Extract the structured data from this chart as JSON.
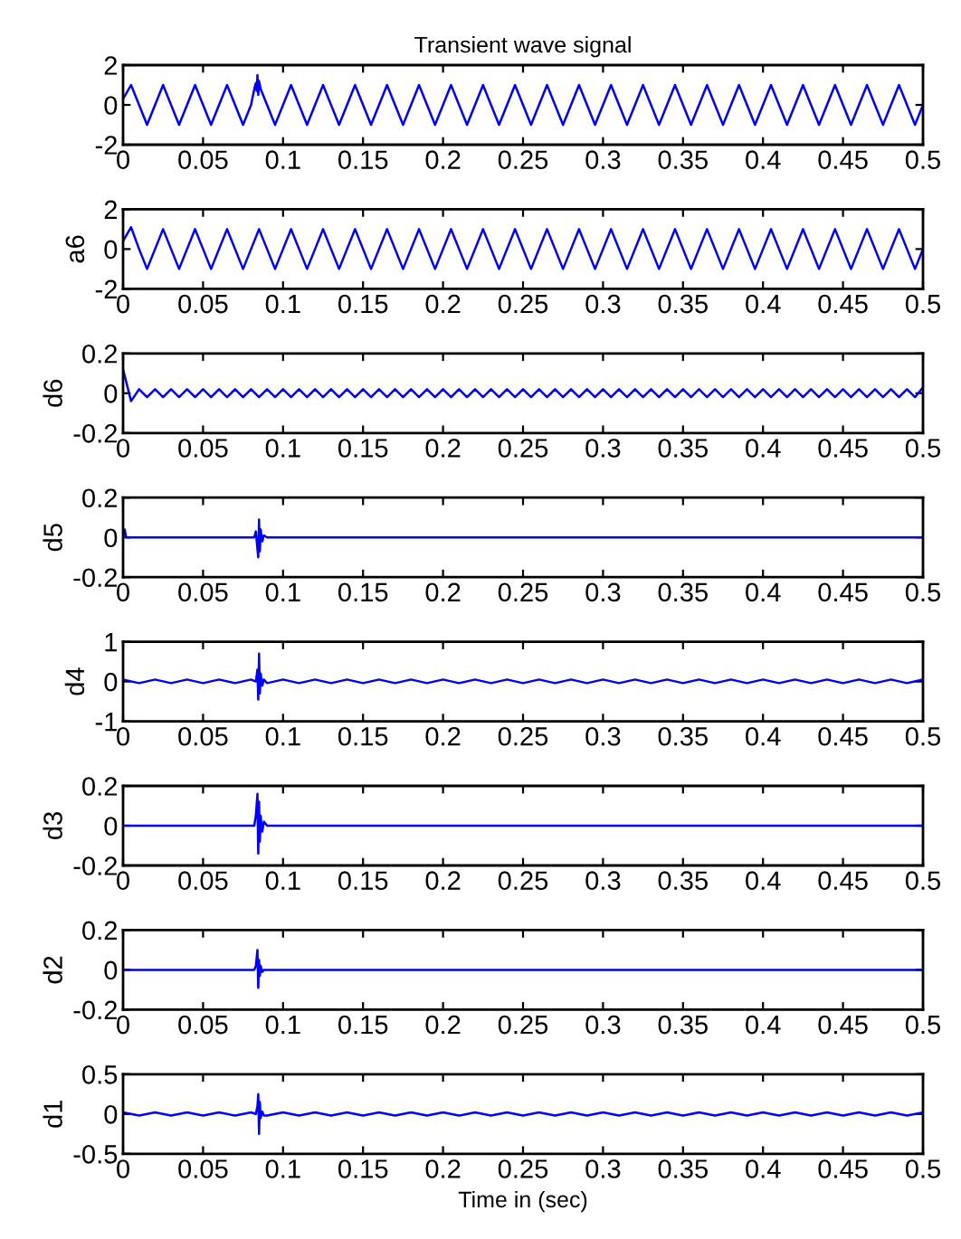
{
  "chart_data": [
    {
      "type": "line",
      "title": "Transient wave signal",
      "xlim": [
        0,
        0.5
      ],
      "xticks": [
        0,
        0.05,
        0.1,
        0.15,
        0.2,
        0.25,
        0.3,
        0.35,
        0.4,
        0.45,
        0.5
      ],
      "ylim": [
        -2,
        2
      ],
      "yticks": [
        -2,
        0,
        2
      ],
      "x": [
        0,
        0.005,
        0.01,
        0.015,
        0.02,
        0.025,
        0.03,
        0.035,
        0.04,
        0.045,
        0.05,
        0.055,
        0.06,
        0.065,
        0.07,
        0.075,
        0.08,
        0.082,
        0.083,
        0.0835,
        0.084,
        0.0845,
        0.085,
        0.086,
        0.09,
        0.095,
        0.1,
        0.105,
        0.11,
        0.115,
        0.12,
        0.125,
        0.13,
        0.135,
        0.14,
        0.145,
        0.15,
        0.155,
        0.16,
        0.165,
        0.17,
        0.175,
        0.18,
        0.185,
        0.19,
        0.195,
        0.2,
        0.205,
        0.21,
        0.215,
        0.22,
        0.225,
        0.23,
        0.235,
        0.24,
        0.245,
        0.25,
        0.255,
        0.26,
        0.265,
        0.27,
        0.275,
        0.28,
        0.285,
        0.29,
        0.295,
        0.3,
        0.305,
        0.31,
        0.315,
        0.32,
        0.325,
        0.33,
        0.335,
        0.34,
        0.345,
        0.35,
        0.355,
        0.36,
        0.365,
        0.37,
        0.375,
        0.38,
        0.385,
        0.39,
        0.395,
        0.4,
        0.405,
        0.41,
        0.415,
        0.42,
        0.425,
        0.43,
        0.435,
        0.44,
        0.445,
        0.45,
        0.455,
        0.46,
        0.465,
        0.47,
        0.475,
        0.48,
        0.485,
        0.49,
        0.495,
        0.5
      ],
      "series": [
        {
          "color": "#0000ff",
          "values": [
            0.3,
            1,
            0,
            -1,
            0,
            1,
            0,
            -1,
            0,
            1,
            0,
            -1,
            0,
            1,
            0,
            -1,
            0,
            0.8,
            1.1,
            0.7,
            1.5,
            0.5,
            1.2,
            0.8,
            0,
            -1,
            0,
            1,
            0,
            -1,
            0,
            1,
            0,
            -1,
            0,
            1,
            0,
            -1,
            0,
            1,
            0,
            -1,
            0,
            1,
            0,
            -1,
            0,
            1,
            0,
            -1,
            0,
            1,
            0,
            -1,
            0,
            1,
            0,
            -1,
            0,
            1,
            0,
            -1,
            0,
            1,
            0,
            -1,
            0,
            1,
            0,
            -1,
            0,
            1,
            0,
            -1,
            0,
            1,
            0,
            -1,
            0,
            1,
            0,
            -1,
            0,
            1,
            0,
            -1,
            0,
            1,
            0,
            -1,
            0,
            1,
            0,
            -1,
            0,
            1,
            0,
            -1,
            0,
            1,
            0,
            -1,
            0,
            1,
            0,
            -1,
            0
          ]
        }
      ]
    },
    {
      "type": "line",
      "ylabel": "a6",
      "xlim": [
        0,
        0.5
      ],
      "xticks": [
        0,
        0.05,
        0.1,
        0.15,
        0.2,
        0.25,
        0.3,
        0.35,
        0.4,
        0.45,
        0.5
      ],
      "ylim": [
        -2,
        2
      ],
      "yticks": [
        -2,
        0,
        2
      ],
      "x": [
        0,
        0.005,
        0.01,
        0.015,
        0.02,
        0.025,
        0.03,
        0.035,
        0.04,
        0.045,
        0.05,
        0.055,
        0.06,
        0.065,
        0.07,
        0.075,
        0.08,
        0.085,
        0.09,
        0.095,
        0.1,
        0.105,
        0.11,
        0.115,
        0.12,
        0.125,
        0.13,
        0.135,
        0.14,
        0.145,
        0.15,
        0.155,
        0.16,
        0.165,
        0.17,
        0.175,
        0.18,
        0.185,
        0.19,
        0.195,
        0.2,
        0.205,
        0.21,
        0.215,
        0.22,
        0.225,
        0.23,
        0.235,
        0.24,
        0.245,
        0.25,
        0.255,
        0.26,
        0.265,
        0.27,
        0.275,
        0.28,
        0.285,
        0.29,
        0.295,
        0.3,
        0.305,
        0.31,
        0.315,
        0.32,
        0.325,
        0.33,
        0.335,
        0.34,
        0.345,
        0.35,
        0.355,
        0.36,
        0.365,
        0.37,
        0.375,
        0.38,
        0.385,
        0.39,
        0.395,
        0.4,
        0.405,
        0.41,
        0.415,
        0.42,
        0.425,
        0.43,
        0.435,
        0.44,
        0.445,
        0.45,
        0.455,
        0.46,
        0.465,
        0.47,
        0.475,
        0.48,
        0.485,
        0.49,
        0.495,
        0.5
      ],
      "series": [
        {
          "color": "#0000ff",
          "values": [
            0.4,
            1.1,
            0,
            -1,
            0,
            1,
            0,
            -1,
            0,
            1,
            0,
            -1,
            0,
            1,
            0,
            -1,
            0,
            1,
            0,
            -1,
            0,
            1,
            0,
            -1,
            0,
            1,
            0,
            -1,
            0,
            1,
            0,
            -1,
            0,
            1,
            0,
            -1,
            0,
            1,
            0,
            -1,
            0,
            1,
            0,
            -1,
            0,
            1,
            0,
            -1,
            0,
            1,
            0,
            -1,
            0,
            1,
            0,
            -1,
            0,
            1,
            0,
            -1,
            0,
            1,
            0,
            -1,
            0,
            1,
            0,
            -1,
            0,
            1,
            0,
            -1,
            0,
            1,
            0,
            -1,
            0,
            1,
            0,
            -1,
            0,
            1,
            0,
            -1,
            0,
            1,
            0,
            -1,
            0,
            1,
            0,
            -1,
            0,
            1,
            0,
            -1,
            0,
            1,
            0,
            -1,
            0
          ]
        }
      ]
    },
    {
      "type": "line",
      "ylabel": "d6",
      "xlim": [
        0,
        0.5
      ],
      "xticks": [
        0,
        0.05,
        0.1,
        0.15,
        0.2,
        0.25,
        0.3,
        0.35,
        0.4,
        0.45,
        0.5
      ],
      "ylim": [
        -0.2,
        0.2
      ],
      "yticks": [
        -0.2,
        0,
        0.2
      ],
      "x": [
        0,
        0.005,
        0.01,
        0.015,
        0.02,
        0.025,
        0.03,
        0.035,
        0.04,
        0.045,
        0.05,
        0.055,
        0.06,
        0.065,
        0.07,
        0.075,
        0.08,
        0.085,
        0.09,
        0.095,
        0.1,
        0.105,
        0.11,
        0.115,
        0.12,
        0.125,
        0.13,
        0.135,
        0.14,
        0.145,
        0.15,
        0.155,
        0.16,
        0.165,
        0.17,
        0.175,
        0.18,
        0.185,
        0.19,
        0.195,
        0.2,
        0.205,
        0.21,
        0.215,
        0.22,
        0.225,
        0.23,
        0.235,
        0.24,
        0.245,
        0.25,
        0.255,
        0.26,
        0.265,
        0.27,
        0.275,
        0.28,
        0.285,
        0.29,
        0.295,
        0.3,
        0.305,
        0.31,
        0.315,
        0.32,
        0.325,
        0.33,
        0.335,
        0.34,
        0.345,
        0.35,
        0.355,
        0.36,
        0.365,
        0.37,
        0.375,
        0.38,
        0.385,
        0.39,
        0.395,
        0.4,
        0.405,
        0.41,
        0.415,
        0.42,
        0.425,
        0.43,
        0.435,
        0.44,
        0.445,
        0.45,
        0.455,
        0.46,
        0.465,
        0.47,
        0.475,
        0.48,
        0.485,
        0.49,
        0.495,
        0.5
      ],
      "series": [
        {
          "color": "#0000ff",
          "values": [
            0.12,
            -0.04,
            0.02,
            -0.02,
            0.02,
            -0.02,
            0.02,
            -0.02,
            0.02,
            -0.02,
            0.02,
            -0.02,
            0.02,
            -0.02,
            0.02,
            -0.02,
            0.02,
            -0.02,
            0.02,
            -0.02,
            0.02,
            -0.02,
            0.02,
            -0.02,
            0.02,
            -0.02,
            0.02,
            -0.02,
            0.02,
            -0.02,
            0.02,
            -0.02,
            0.02,
            -0.02,
            0.02,
            -0.02,
            0.02,
            -0.02,
            0.02,
            -0.02,
            0.02,
            -0.02,
            0.02,
            -0.02,
            0.02,
            -0.02,
            0.02,
            -0.02,
            0.02,
            -0.02,
            0.02,
            -0.02,
            0.02,
            -0.02,
            0.02,
            -0.02,
            0.02,
            -0.02,
            0.02,
            -0.02,
            0.02,
            -0.02,
            0.02,
            -0.02,
            0.02,
            -0.02,
            0.02,
            -0.02,
            0.02,
            -0.02,
            0.02,
            -0.02,
            0.02,
            -0.02,
            0.02,
            -0.02,
            0.02,
            -0.02,
            0.02,
            -0.02,
            0.02,
            -0.02,
            0.02,
            -0.02,
            0.02,
            -0.02,
            0.02,
            -0.02,
            0.02,
            -0.02,
            0.02,
            -0.02,
            0.02,
            -0.02,
            0.02,
            -0.02,
            0.02,
            -0.02,
            0.02,
            -0.02,
            0.03
          ]
        }
      ]
    },
    {
      "type": "line",
      "ylabel": "d5",
      "xlim": [
        0,
        0.5
      ],
      "xticks": [
        0,
        0.05,
        0.1,
        0.15,
        0.2,
        0.25,
        0.3,
        0.35,
        0.4,
        0.45,
        0.5
      ],
      "ylim": [
        -0.2,
        0.2
      ],
      "yticks": [
        -0.2,
        0,
        0.2
      ],
      "x": [
        0,
        0.001,
        0.002,
        0.082,
        0.083,
        0.084,
        0.0845,
        0.085,
        0.0855,
        0.086,
        0.087,
        0.088,
        0.09,
        0.5
      ],
      "series": [
        {
          "color": "#0000ff",
          "values": [
            0,
            0.04,
            0,
            0,
            0.03,
            -0.06,
            -0.1,
            0.09,
            -0.07,
            0.04,
            -0.02,
            0.01,
            0,
            0
          ]
        }
      ]
    },
    {
      "type": "line",
      "ylabel": "d4",
      "xlim": [
        0,
        0.5
      ],
      "xticks": [
        0,
        0.05,
        0.1,
        0.15,
        0.2,
        0.25,
        0.3,
        0.35,
        0.4,
        0.45,
        0.5
      ],
      "ylim": [
        -1,
        1
      ],
      "yticks": [
        -1,
        0,
        1
      ],
      "x": [
        0,
        0.01,
        0.02,
        0.03,
        0.04,
        0.05,
        0.06,
        0.07,
        0.08,
        0.083,
        0.084,
        0.0845,
        0.085,
        0.0855,
        0.086,
        0.087,
        0.088,
        0.09,
        0.1,
        0.11,
        0.12,
        0.13,
        0.14,
        0.15,
        0.16,
        0.17,
        0.18,
        0.19,
        0.2,
        0.21,
        0.22,
        0.23,
        0.24,
        0.25,
        0.26,
        0.27,
        0.28,
        0.29,
        0.3,
        0.31,
        0.32,
        0.33,
        0.34,
        0.35,
        0.36,
        0.37,
        0.38,
        0.39,
        0.4,
        0.41,
        0.42,
        0.43,
        0.44,
        0.45,
        0.46,
        0.47,
        0.48,
        0.49,
        0.5
      ],
      "series": [
        {
          "color": "#0000ff",
          "values": [
            0.05,
            -0.04,
            0.05,
            -0.04,
            0.05,
            -0.04,
            0.05,
            -0.04,
            0.05,
            0,
            0.3,
            -0.45,
            0.7,
            -0.3,
            0.2,
            -0.1,
            0.05,
            -0.04,
            0.05,
            -0.04,
            0.05,
            -0.04,
            0.05,
            -0.04,
            0.05,
            -0.04,
            0.05,
            -0.04,
            0.05,
            -0.04,
            0.05,
            -0.04,
            0.05,
            -0.04,
            0.05,
            -0.04,
            0.05,
            -0.04,
            0.05,
            -0.04,
            0.05,
            -0.04,
            0.05,
            -0.04,
            0.05,
            -0.04,
            0.05,
            -0.04,
            0.05,
            -0.04,
            0.05,
            -0.04,
            0.05,
            -0.04,
            0.05,
            -0.04,
            0.05,
            -0.04,
            0.05
          ]
        }
      ]
    },
    {
      "type": "line",
      "ylabel": "d3",
      "xlim": [
        0,
        0.5
      ],
      "xticks": [
        0,
        0.05,
        0.1,
        0.15,
        0.2,
        0.25,
        0.3,
        0.35,
        0.4,
        0.45,
        0.5
      ],
      "ylim": [
        -0.2,
        0.2
      ],
      "yticks": [
        -0.2,
        0,
        0.2
      ],
      "x": [
        0,
        0.001,
        0.002,
        0.082,
        0.083,
        0.084,
        0.0845,
        0.085,
        0.0855,
        0.086,
        0.087,
        0.088,
        0.09,
        0.5
      ],
      "series": [
        {
          "color": "#0000ff",
          "values": [
            0,
            0,
            0,
            0,
            0.05,
            0.16,
            -0.14,
            0.12,
            -0.08,
            0.05,
            -0.03,
            0.02,
            0,
            0
          ]
        }
      ]
    },
    {
      "type": "line",
      "ylabel": "d2",
      "xlim": [
        0,
        0.5
      ],
      "xticks": [
        0,
        0.05,
        0.1,
        0.15,
        0.2,
        0.25,
        0.3,
        0.35,
        0.4,
        0.45,
        0.5
      ],
      "ylim": [
        -0.2,
        0.2
      ],
      "yticks": [
        -0.2,
        0,
        0.2
      ],
      "x": [
        0,
        0.001,
        0.002,
        0.082,
        0.083,
        0.084,
        0.0845,
        0.085,
        0.0855,
        0.086,
        0.087,
        0.088,
        0.09,
        0.5
      ],
      "series": [
        {
          "color": "#0000ff",
          "values": [
            0,
            0,
            0,
            0,
            0.02,
            0.1,
            -0.09,
            0.05,
            -0.03,
            0.02,
            -0.01,
            0,
            0,
            0
          ]
        }
      ]
    },
    {
      "type": "line",
      "ylabel": "d1",
      "xlabel": "Time in (sec)",
      "xlim": [
        0,
        0.5
      ],
      "xticks": [
        0,
        0.05,
        0.1,
        0.15,
        0.2,
        0.25,
        0.3,
        0.35,
        0.4,
        0.45,
        0.5
      ],
      "ylim": [
        -0.5,
        0.5
      ],
      "yticks": [
        -0.5,
        0,
        0.5
      ],
      "x": [
        0,
        0.01,
        0.02,
        0.03,
        0.04,
        0.05,
        0.06,
        0.07,
        0.08,
        0.083,
        0.084,
        0.0845,
        0.085,
        0.0855,
        0.086,
        0.087,
        0.088,
        0.09,
        0.1,
        0.11,
        0.12,
        0.13,
        0.14,
        0.15,
        0.16,
        0.17,
        0.18,
        0.19,
        0.2,
        0.21,
        0.22,
        0.23,
        0.24,
        0.25,
        0.26,
        0.27,
        0.28,
        0.29,
        0.3,
        0.31,
        0.32,
        0.33,
        0.34,
        0.35,
        0.36,
        0.37,
        0.38,
        0.39,
        0.4,
        0.41,
        0.42,
        0.43,
        0.44,
        0.45,
        0.46,
        0.47,
        0.48,
        0.49,
        0.5
      ],
      "series": [
        {
          "color": "#0000ff",
          "values": [
            0.02,
            -0.02,
            0.02,
            -0.02,
            0.02,
            -0.02,
            0.02,
            -0.02,
            0.02,
            0,
            0.1,
            0.25,
            -0.25,
            0.15,
            -0.05,
            0.03,
            -0.02,
            -0.02,
            0.02,
            -0.02,
            0.02,
            -0.02,
            0.02,
            -0.02,
            0.02,
            -0.02,
            0.02,
            -0.02,
            0.02,
            -0.02,
            0.02,
            -0.02,
            0.02,
            -0.02,
            0.02,
            -0.02,
            0.02,
            -0.02,
            0.02,
            -0.02,
            0.02,
            -0.02,
            0.02,
            -0.02,
            0.02,
            -0.02,
            0.02,
            -0.02,
            0.02,
            -0.02,
            0.02,
            -0.02,
            0.02,
            -0.02,
            0.02,
            -0.02,
            0.02,
            -0.02,
            0.02
          ]
        }
      ]
    }
  ]
}
